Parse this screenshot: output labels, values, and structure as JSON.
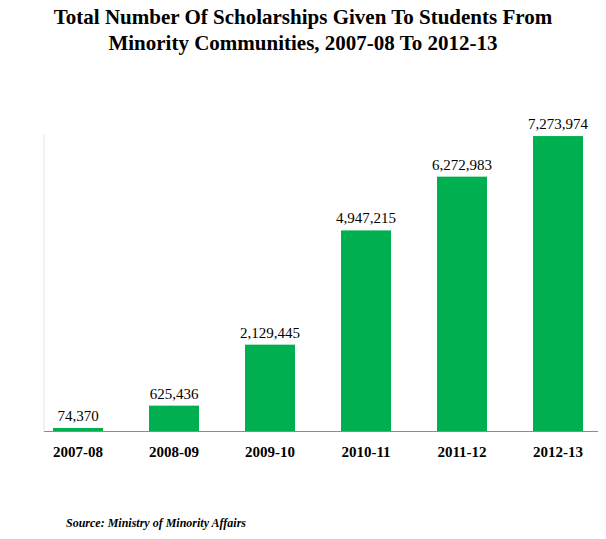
{
  "chart_data": {
    "type": "bar",
    "title": "Total Number Of Scholarships Given To Students From Minority Communities, 2007-08 To 2012-13",
    "source": "Source: Ministry of Minority Affairs",
    "categories": [
      "2007-08",
      "2008-09",
      "2009-10",
      "2010-11",
      "2011-12",
      "2012-13"
    ],
    "values": [
      74370,
      625436,
      2129445,
      4947215,
      6272983,
      7273974
    ],
    "value_labels": [
      "74,370",
      "625,436",
      "2,129,445",
      "4,947,215",
      "6,272,983",
      "7,273,974"
    ],
    "color": "#00b050",
    "ylim": [
      0,
      7300000
    ],
    "grid": false,
    "data_labels": true,
    "tick_labels": "x"
  }
}
